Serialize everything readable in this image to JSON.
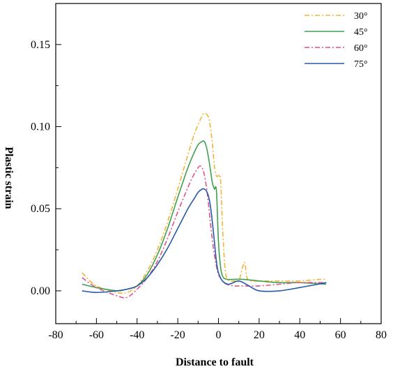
{
  "chart_data": {
    "type": "line",
    "title": "",
    "xlabel": "Distance to fault",
    "ylabel": "Plastic strain",
    "xlim": [
      -80,
      80
    ],
    "ylim": [
      -0.02,
      0.175
    ],
    "xticks": [
      -80,
      -60,
      -40,
      -20,
      0,
      20,
      40,
      60,
      80
    ],
    "xtick_labels": [
      "-80",
      "-60",
      "-40",
      "-20",
      "0",
      "20",
      "40",
      "60",
      "80"
    ],
    "yticks": [
      0.0,
      0.05,
      0.1,
      0.15
    ],
    "ytick_labels": [
      "0.00",
      "0.05",
      "0.10",
      "0.15"
    ],
    "grid": false,
    "legend_position": "top-right",
    "series": [
      {
        "name": "30°",
        "color": "#f2b535",
        "dash": "dash-dot",
        "x": [
          -67,
          -60,
          -50,
          -45,
          -40,
          -35,
          -30,
          -25,
          -20,
          -15,
          -12,
          -9,
          -7,
          -5,
          -4,
          -3,
          -2,
          -1,
          0,
          1,
          2,
          3,
          4,
          6,
          8,
          10,
          12,
          13,
          14,
          16,
          20,
          30,
          40,
          50,
          53
        ],
        "y": [
          0.011,
          0.003,
          -0.001,
          -0.001,
          0.003,
          0.012,
          0.025,
          0.042,
          0.062,
          0.083,
          0.095,
          0.104,
          0.108,
          0.106,
          0.1,
          0.09,
          0.076,
          0.07,
          0.07,
          0.068,
          0.04,
          0.017,
          0.008,
          0.006,
          0.006,
          0.006,
          0.015,
          0.017,
          0.008,
          0.006,
          0.006,
          0.006,
          0.006,
          0.007,
          0.007
        ]
      },
      {
        "name": "45°",
        "color": "#3f9e4f",
        "dash": "solid",
        "x": [
          -67,
          -60,
          -50,
          -45,
          -40,
          -35,
          -30,
          -25,
          -20,
          -15,
          -12,
          -10,
          -8,
          -7,
          -6,
          -5,
          -4,
          -3,
          -2,
          -1,
          0,
          1,
          2,
          4,
          8,
          12,
          20,
          30,
          40,
          53
        ],
        "y": [
          0.004,
          0.002,
          0.0,
          0.001,
          0.003,
          0.01,
          0.022,
          0.038,
          0.057,
          0.075,
          0.084,
          0.089,
          0.091,
          0.091,
          0.088,
          0.082,
          0.074,
          0.066,
          0.062,
          0.061,
          0.03,
          0.015,
          0.009,
          0.007,
          0.007,
          0.007,
          0.006,
          0.005,
          0.005,
          0.004
        ]
      },
      {
        "name": "60°",
        "color": "#e2518a",
        "dash": "dash-dot",
        "x": [
          -67,
          -60,
          -50,
          -45,
          -40,
          -35,
          -30,
          -25,
          -20,
          -15,
          -12,
          -10,
          -9,
          -8,
          -7,
          -6,
          -5,
          -4,
          -3,
          -2,
          -1,
          0,
          2,
          4,
          8,
          12,
          20,
          30,
          40,
          53
        ],
        "y": [
          0.008,
          0.002,
          -0.003,
          -0.004,
          0.001,
          0.008,
          0.018,
          0.032,
          0.048,
          0.063,
          0.071,
          0.075,
          0.076,
          0.075,
          0.071,
          0.064,
          0.054,
          0.042,
          0.031,
          0.022,
          0.015,
          0.01,
          0.006,
          0.004,
          0.003,
          0.003,
          0.003,
          0.004,
          0.005,
          0.005
        ]
      },
      {
        "name": "75°",
        "color": "#2559a7",
        "dash": "solid",
        "x": [
          -67,
          -60,
          -50,
          -45,
          -40,
          -35,
          -30,
          -25,
          -20,
          -15,
          -12,
          -10,
          -8,
          -7,
          -6,
          -5,
          -4,
          -3,
          -2,
          -1,
          0,
          2,
          5,
          10,
          15,
          20,
          30,
          40,
          53
        ],
        "y": [
          0.0,
          -0.001,
          0.0,
          0.001,
          0.003,
          0.008,
          0.016,
          0.026,
          0.038,
          0.05,
          0.056,
          0.06,
          0.062,
          0.062,
          0.061,
          0.058,
          0.052,
          0.042,
          0.03,
          0.018,
          0.011,
          0.006,
          0.004,
          0.006,
          0.003,
          0.0,
          0.0,
          0.002,
          0.005
        ]
      }
    ]
  }
}
